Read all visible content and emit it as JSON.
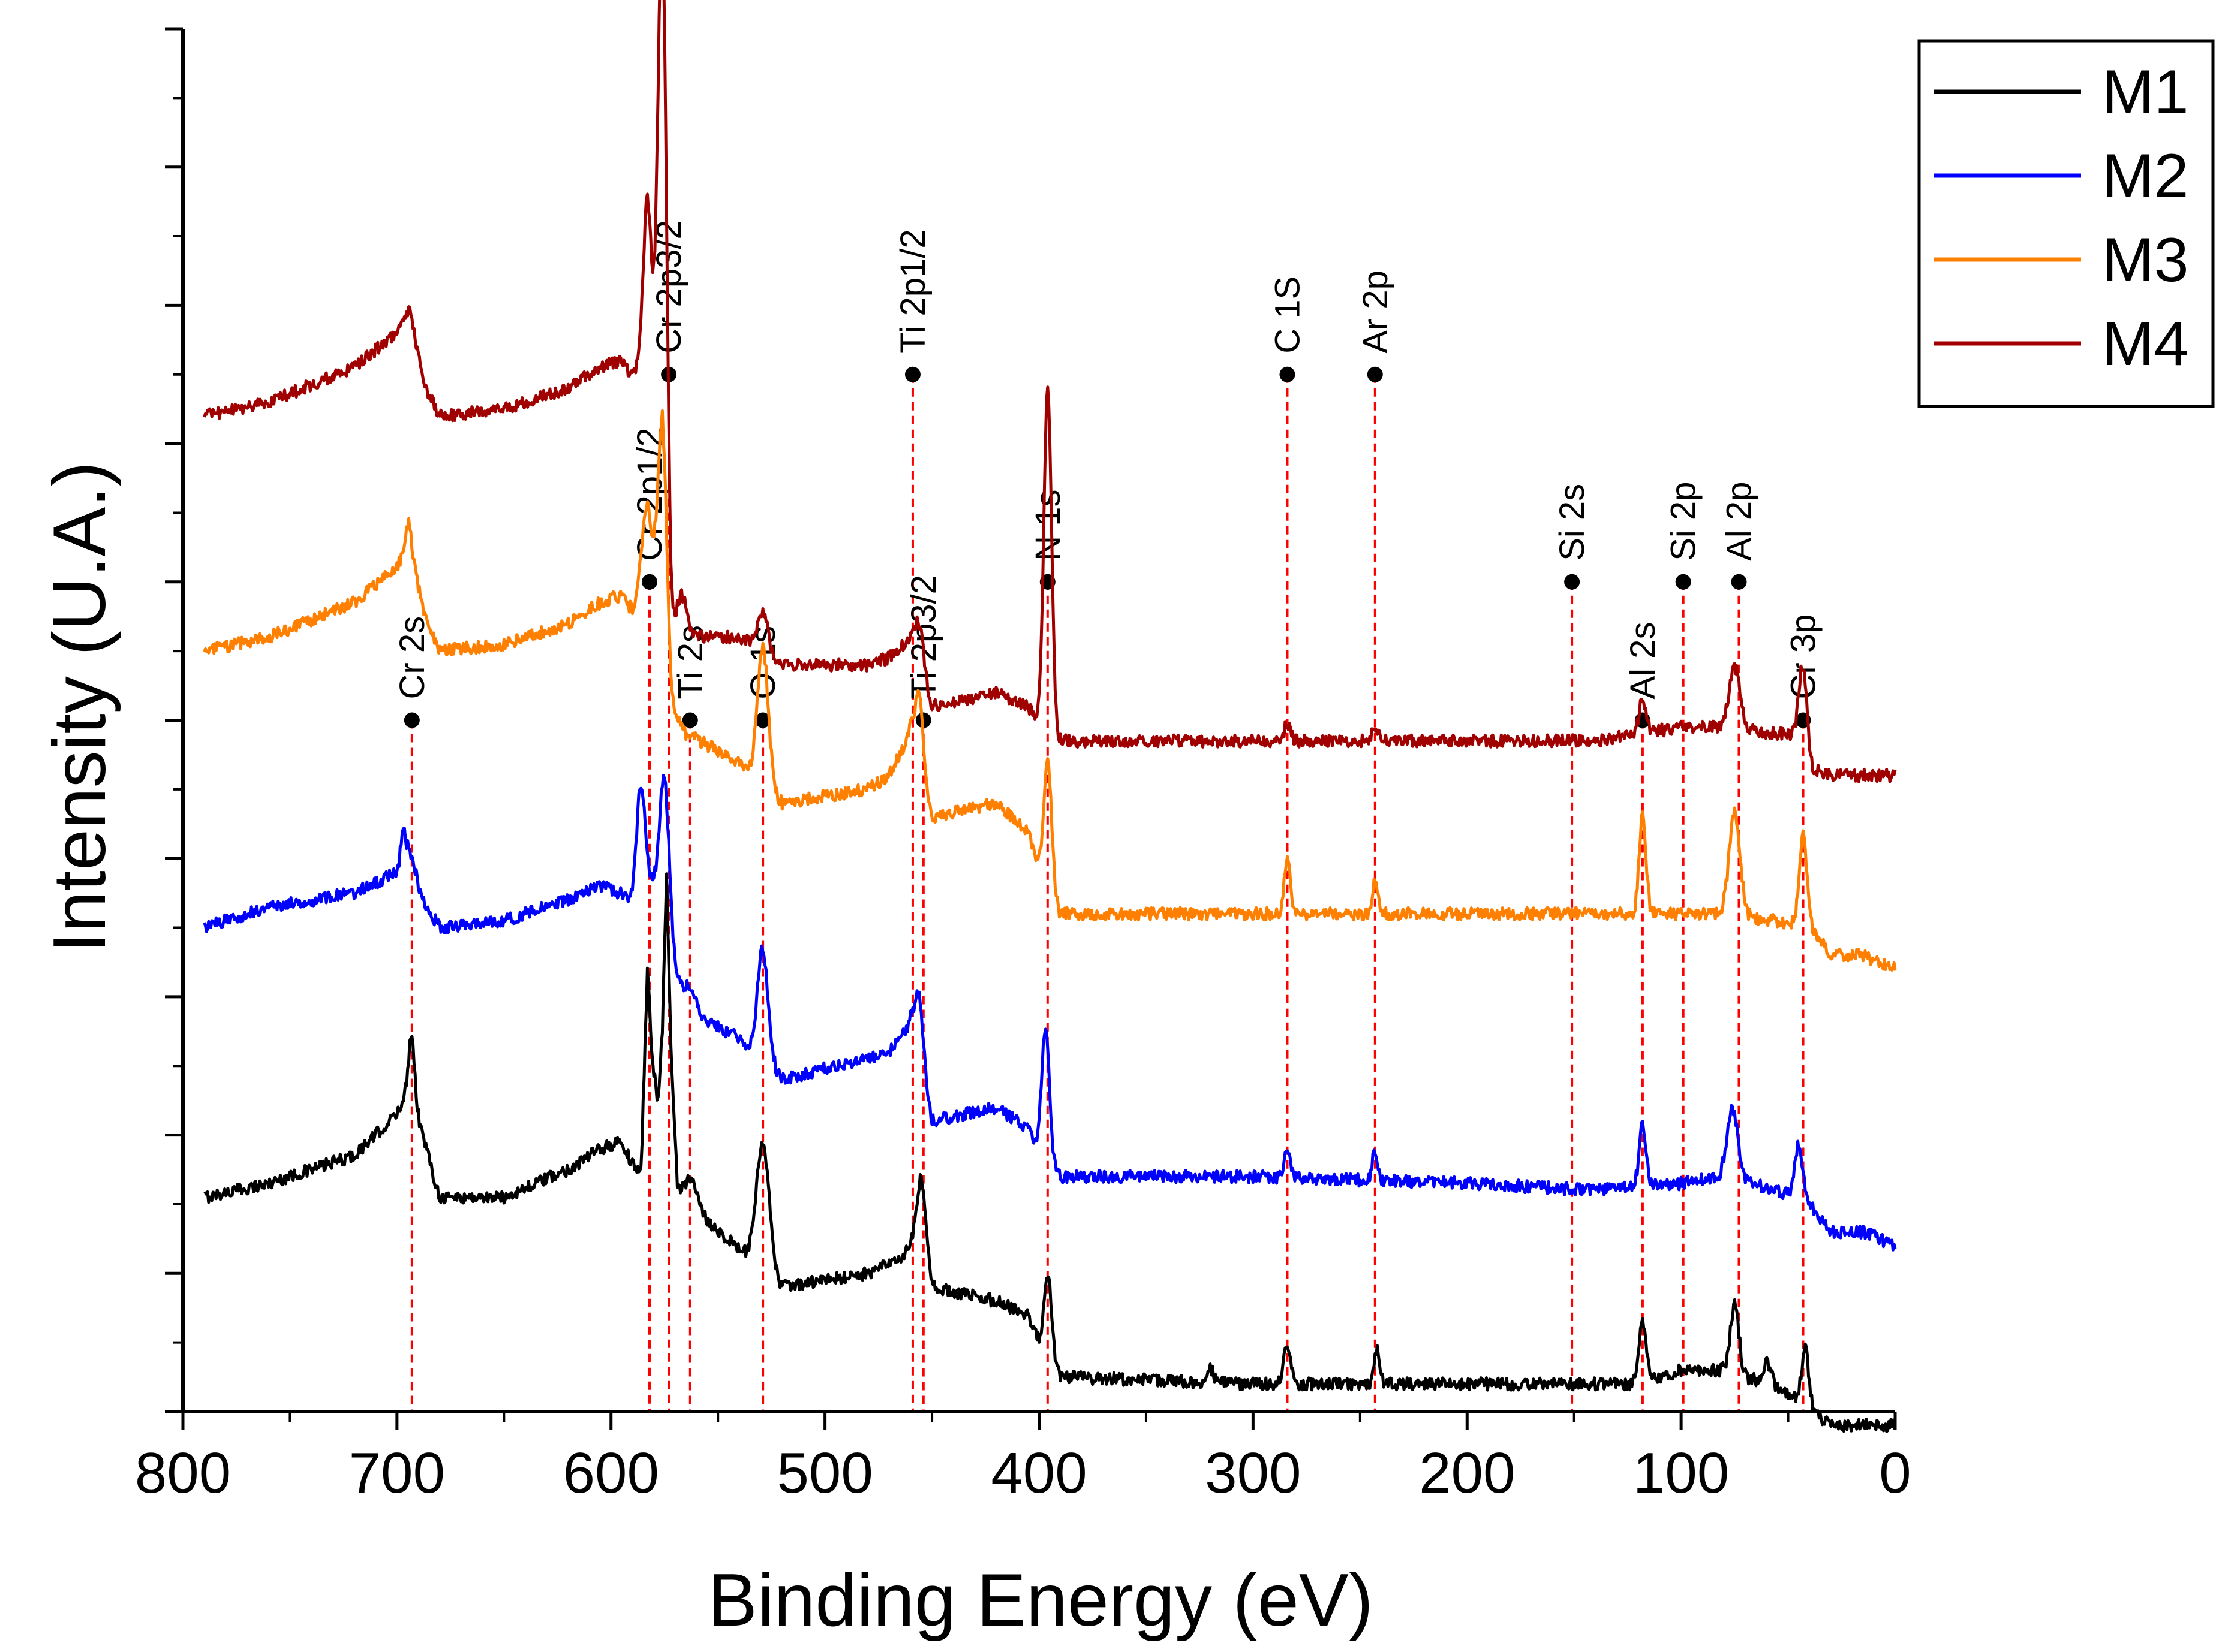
{
  "chart_data": {
    "type": "line",
    "title": "",
    "xlabel": "Binding Energy (eV)",
    "ylabel": "Intensity (U.A.)",
    "xlim": [
      800,
      0
    ],
    "ylim": [
      0,
      100
    ],
    "x_reversed": true,
    "x_ticks": [
      800,
      700,
      600,
      500,
      400,
      300,
      200,
      100,
      0
    ],
    "x_tick_labels": [
      "800",
      "700",
      "600",
      "500",
      "400",
      "300",
      "200",
      "100",
      "0"
    ],
    "y_tick_labels_shown": false,
    "grid": false,
    "legend_position": "top-right",
    "series": [
      {
        "name": "M1",
        "color": "#000000",
        "offset": 15,
        "base": [
          [
            790,
            0.5
          ],
          [
            760,
            1.5
          ],
          [
            720,
            3.5
          ],
          [
            700,
            6.5
          ],
          [
            694,
            9
          ],
          [
            688,
            5
          ],
          [
            680,
            0.5
          ],
          [
            650,
            0.5
          ],
          [
            620,
            2.5
          ],
          [
            605,
            4
          ],
          [
            596,
            4.5
          ],
          [
            590,
            3
          ],
          [
            586,
            2
          ],
          [
            583,
            14
          ],
          [
            581,
            7
          ],
          [
            578,
            3
          ],
          [
            576,
            7
          ],
          [
            574,
            18
          ],
          [
            572,
            7
          ],
          [
            569,
            0
          ],
          [
            560,
            -0.5
          ],
          [
            520,
            -6
          ],
          [
            480,
            -5
          ],
          [
            465,
            -4
          ],
          [
            455,
            -2
          ],
          [
            450,
            -6
          ],
          [
            420,
            -7
          ],
          [
            405,
            -8
          ],
          [
            398,
            -11
          ],
          [
            390,
            -12.5
          ],
          [
            300,
            -13
          ],
          [
            200,
            -13
          ],
          [
            120,
            -13
          ],
          [
            100,
            -12
          ],
          [
            80,
            -12
          ],
          [
            60,
            -13
          ],
          [
            45,
            -14
          ],
          [
            35,
            -15.5
          ],
          [
            25,
            -16
          ],
          [
            10,
            -16
          ],
          [
            0,
            -16
          ]
        ],
        "peaks": [
          [
            693,
            1.2,
            4
          ],
          [
            575,
            3.5,
            6
          ],
          [
            582,
            2,
            3
          ],
          [
            563,
            3,
            2
          ],
          [
            529,
            3,
            9
          ],
          [
            455,
            2,
            4
          ],
          [
            396,
            1.8,
            6.5
          ],
          [
            284,
            1.5,
            3
          ],
          [
            242,
            1.3,
            2.5
          ],
          [
            320,
            1.5,
            1
          ],
          [
            118,
            1.6,
            4.5
          ],
          [
            75,
            2,
            5
          ],
          [
            42,
            1.6,
            4
          ],
          [
            60,
            2,
            1.5
          ]
        ]
      },
      {
        "name": "M2",
        "color": "#0000ff",
        "offset": 35,
        "base": [
          [
            790,
            0
          ],
          [
            760,
            1.5
          ],
          [
            720,
            2.5
          ],
          [
            700,
            4
          ],
          [
            694,
            5.5
          ],
          [
            688,
            2
          ],
          [
            680,
            0
          ],
          [
            650,
            0.5
          ],
          [
            620,
            2
          ],
          [
            605,
            3
          ],
          [
            596,
            2.5
          ],
          [
            590,
            2
          ],
          [
            580,
            3
          ],
          [
            572,
            -2
          ],
          [
            565,
            -6
          ],
          [
            540,
            -8
          ],
          [
            520,
            -11
          ],
          [
            470,
            -9
          ],
          [
            460,
            -7
          ],
          [
            450,
            -14
          ],
          [
            420,
            -13
          ],
          [
            405,
            -14.5
          ],
          [
            398,
            -17
          ],
          [
            390,
            -18
          ],
          [
            300,
            -18
          ],
          [
            200,
            -18.5
          ],
          [
            140,
            -19
          ],
          [
            100,
            -18.5
          ],
          [
            80,
            -18
          ],
          [
            55,
            -19
          ],
          [
            40,
            -20
          ],
          [
            30,
            -22
          ],
          [
            15,
            -22
          ],
          [
            0,
            -23
          ]
        ],
        "peaks": [
          [
            697,
            1.3,
            2
          ],
          [
            586,
            2,
            8
          ],
          [
            575,
            2.2,
            11
          ],
          [
            563,
            3,
            2
          ],
          [
            529,
            2.5,
            8
          ],
          [
            456,
            2,
            5
          ],
          [
            397,
            1.8,
            10
          ],
          [
            284,
            1.5,
            2.2
          ],
          [
            243,
            1.3,
            2.2
          ],
          [
            118,
            1.6,
            4.5
          ],
          [
            76,
            2.5,
            5
          ],
          [
            45,
            1.8,
            4
          ]
        ]
      },
      {
        "name": "M3",
        "color": "#ff7f00",
        "offset": 55,
        "base": [
          [
            790,
            0
          ],
          [
            760,
            1
          ],
          [
            720,
            3.5
          ],
          [
            700,
            6
          ],
          [
            694,
            8
          ],
          [
            688,
            3
          ],
          [
            680,
            0
          ],
          [
            650,
            0.5
          ],
          [
            620,
            2
          ],
          [
            605,
            3.5
          ],
          [
            596,
            4
          ],
          [
            590,
            3
          ],
          [
            586,
            5
          ],
          [
            581,
            4
          ],
          [
            576,
            5
          ],
          [
            572,
            -4
          ],
          [
            565,
            -6
          ],
          [
            540,
            -8
          ],
          [
            520,
            -11
          ],
          [
            480,
            -10
          ],
          [
            470,
            -9
          ],
          [
            460,
            -6
          ],
          [
            450,
            -12
          ],
          [
            420,
            -11
          ],
          [
            405,
            -13
          ],
          [
            398,
            -17
          ],
          [
            390,
            -19
          ],
          [
            300,
            -19
          ],
          [
            200,
            -19
          ],
          [
            140,
            -19
          ],
          [
            100,
            -19
          ],
          [
            80,
            -19
          ],
          [
            55,
            -19.5
          ],
          [
            40,
            -20
          ],
          [
            30,
            -22
          ],
          [
            15,
            -22
          ],
          [
            0,
            -23
          ]
        ],
        "peaks": [
          [
            695,
            1.3,
            1.5
          ],
          [
            583,
            2,
            6
          ],
          [
            576,
            2.2,
            12
          ],
          [
            529,
            2.5,
            10
          ],
          [
            456,
            2,
            5
          ],
          [
            396,
            1.8,
            10
          ],
          [
            284,
            1.5,
            4
          ],
          [
            243,
            1.3,
            2.5
          ],
          [
            118,
            1.6,
            7
          ],
          [
            75,
            2.5,
            7.5
          ],
          [
            43,
            1.8,
            6.5
          ]
        ]
      },
      {
        "name": "M4",
        "color": "#a00000",
        "offset": 72,
        "base": [
          [
            790,
            0
          ],
          [
            760,
            1
          ],
          [
            720,
            3.5
          ],
          [
            700,
            6
          ],
          [
            694,
            8
          ],
          [
            688,
            2.5
          ],
          [
            680,
            0
          ],
          [
            650,
            0.5
          ],
          [
            620,
            2
          ],
          [
            605,
            3.5
          ],
          [
            596,
            4
          ],
          [
            590,
            3
          ],
          [
            585,
            4
          ],
          [
            580,
            3
          ],
          [
            576,
            0
          ],
          [
            572,
            -16
          ],
          [
            565,
            -16
          ],
          [
            540,
            -16
          ],
          [
            520,
            -18
          ],
          [
            480,
            -18
          ],
          [
            470,
            -17.5
          ],
          [
            460,
            -16
          ],
          [
            450,
            -21
          ],
          [
            420,
            -20
          ],
          [
            405,
            -21
          ],
          [
            398,
            -23
          ],
          [
            390,
            -23.5
          ],
          [
            300,
            -23.5
          ],
          [
            200,
            -23.5
          ],
          [
            140,
            -23.5
          ],
          [
            100,
            -22.5
          ],
          [
            80,
            -22.5
          ],
          [
            55,
            -23
          ],
          [
            45,
            -23
          ],
          [
            40,
            -25.5
          ],
          [
            30,
            -26
          ],
          [
            15,
            -26
          ],
          [
            0,
            -26
          ]
        ],
        "peaks": [
          [
            583,
            1.8,
            12
          ],
          [
            576,
            2,
            36
          ],
          [
            567,
            2.5,
            3
          ],
          [
            529,
            2.5,
            3
          ],
          [
            456,
            2,
            3
          ],
          [
            396,
            1.8,
            25
          ],
          [
            284,
            1.5,
            1.2
          ],
          [
            243,
            1.3,
            1.2
          ],
          [
            118,
            1.6,
            2.5
          ],
          [
            75,
            2.5,
            4.5
          ],
          [
            43,
            1.8,
            6
          ]
        ]
      }
    ],
    "annotations": [
      {
        "label": "Cr 2s",
        "x": 693,
        "marker_y": 50
      },
      {
        "label": "Cr 2p1/2",
        "x": 582,
        "marker_y": 60
      },
      {
        "label": "Cr 2p3/2",
        "x": 573,
        "marker_y": 75
      },
      {
        "label": "Ti 2s",
        "x": 563,
        "marker_y": 50
      },
      {
        "label": "O 1s",
        "x": 529,
        "marker_y": 50
      },
      {
        "label": "Ti 2p1/2",
        "x": 459,
        "marker_y": 75
      },
      {
        "label": "Ti 2p3/2",
        "x": 454,
        "marker_y": 50
      },
      {
        "label": "N 1s",
        "x": 396,
        "marker_y": 60
      },
      {
        "label": "C 1S",
        "x": 284,
        "marker_y": 75
      },
      {
        "label": "Ar 2p",
        "x": 243,
        "marker_y": 75
      },
      {
        "label": "Si 2s",
        "x": 151,
        "marker_y": 60
      },
      {
        "label": "Al 2s",
        "x": 118,
        "marker_y": 50
      },
      {
        "label": "Si 2p",
        "x": 99,
        "marker_y": 60
      },
      {
        "label": "Al 2p",
        "x": 73,
        "marker_y": 60
      },
      {
        "label": "Cr 3p",
        "x": 43,
        "marker_y": 50
      }
    ],
    "annotation_line_color": "#ff0000",
    "annotation_marker_color": "#000000"
  }
}
